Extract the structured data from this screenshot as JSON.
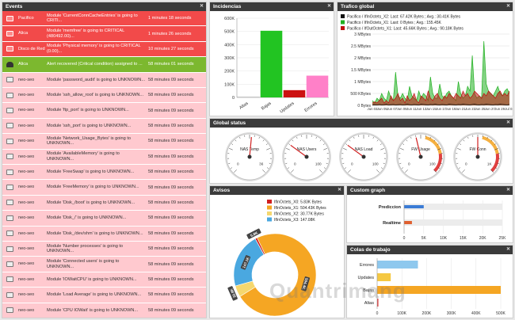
{
  "events": {
    "title": "Events",
    "rows": [
      {
        "kind": "crit",
        "source": "Pacifico",
        "message": "Module 'CurrentConnCacheEntries' is going to CRITI...",
        "time": "1 minutes 18 seconds"
      },
      {
        "kind": "crit",
        "source": "Alica",
        "message": "Module 'memfree' is going to CRITICAL (480492.00)...",
        "time": "1 minutes 26 seconds"
      },
      {
        "kind": "crit",
        "source": "Disco de Red",
        "message": "Module 'Physical memory' is going to CRITICAL (0.00)...",
        "time": "10 minutes 27 seconds"
      },
      {
        "kind": "ok",
        "source": "Alica",
        "message": "Alert recovered (Critical condition) assigned to ...",
        "time": "58 minutes 01 seconds"
      },
      {
        "kind": "norm",
        "source": "neo-seo",
        "message": "Module 'password_audit' is going to UNKNOWN...",
        "time": "58 minutes 09 seconds"
      },
      {
        "kind": "norm",
        "source": "neo-seo",
        "message": "Module 'ssh_allow_root' is going to UNKNOWN...",
        "time": "58 minutes 09 seconds"
      },
      {
        "kind": "norm",
        "source": "neo-seo",
        "message": "Module 'ftp_port' is going to UNKNOWN...",
        "time": "58 minutes 09 seconds"
      },
      {
        "kind": "norm",
        "source": "neo-seo",
        "message": "Module 'ssh_port' is going to UNKNOWN...",
        "time": "58 minutes 09 seconds"
      },
      {
        "kind": "norm",
        "source": "neo-seo",
        "message": "Module 'Network_Usage_Bytes' is going to UNKNOWN...",
        "time": "58 minutes 09 seconds"
      },
      {
        "kind": "norm",
        "source": "neo-seo",
        "message": "Module 'AvailableMemory' is going to UNKNOWN...",
        "time": "58 minutes 09 seconds"
      },
      {
        "kind": "norm",
        "source": "neo-seo",
        "message": "Module 'FreeSwap' is going to UNKNOWN...",
        "time": "58 minutes 09 seconds"
      },
      {
        "kind": "norm",
        "source": "neo-seo",
        "message": "Module 'FreeMemory' is going to UNKNOWN...",
        "time": "58 minutes 09 seconds"
      },
      {
        "kind": "norm",
        "source": "neo-seo",
        "message": "Module 'Disk_/boot' is going to UNKNOWN...",
        "time": "58 minutes 09 seconds"
      },
      {
        "kind": "norm",
        "source": "neo-seo",
        "message": "Module 'Disk_/' is going to UNKNOWN...",
        "time": "58 minutes 09 seconds"
      },
      {
        "kind": "norm",
        "source": "neo-seo",
        "message": "Module 'Disk_/dev/shm' is going to UNKNOWN...",
        "time": "58 minutes 09 seconds"
      },
      {
        "kind": "norm",
        "source": "neo-seo",
        "message": "Module 'Number processes' is going to UNKNOWN...",
        "time": "58 minutes 09 seconds"
      },
      {
        "kind": "norm",
        "source": "neo-seo",
        "message": "Module 'Connected users' is going to UNKNOWN...",
        "time": "58 minutes 09 seconds"
      },
      {
        "kind": "norm",
        "source": "neo-seo",
        "message": "Module 'IOWaitCPU' is going to UNKNOWN...",
        "time": "58 minutes 09 seconds"
      },
      {
        "kind": "norm",
        "source": "neo-seo",
        "message": "Module 'Load Average' is going to UNKNOWN...",
        "time": "58 minutes 09 seconds"
      },
      {
        "kind": "norm",
        "source": "neo-seo",
        "message": "Module 'CPU IOWait' is going to UNKNOWN...",
        "time": "58 minutes 09 seconds"
      }
    ]
  },
  "incidencias": {
    "title": "Incidencias"
  },
  "trafico": {
    "title": "Trafico global"
  },
  "global_status": {
    "title": "Global status",
    "gauges": [
      {
        "label": "NAS Temp",
        "min": "0",
        "max": "36",
        "value": 0.52,
        "ticks": [
          "0",
          "36"
        ]
      },
      {
        "label": "NAS Users",
        "min": "0",
        "max": "100",
        "value": 0.3,
        "ticks": [
          "0",
          "100"
        ]
      },
      {
        "label": "NAS Load",
        "min": "0",
        "max": "100",
        "value": 0.3,
        "ticks": [
          "0",
          "100"
        ]
      },
      {
        "label": "FW Usage",
        "min": "0",
        "max": "100",
        "value": 0.45,
        "ticks": [
          "0",
          "100"
        ]
      },
      {
        "label": "FW Conn",
        "min": "0",
        "max": "1K",
        "value": 0.5,
        "ticks": [
          "0",
          "1K"
        ]
      }
    ]
  },
  "avisos": {
    "title": "Avisos"
  },
  "custom_graph": {
    "title": "Custom graph"
  },
  "colas": {
    "title": "Colas de trabajo"
  },
  "watermark": "Quantrimang",
  "colors": {
    "critical": "#f24a4a",
    "ok": "#7cb82f",
    "normal": "#ffc9cf",
    "header": "#3b3b3b"
  },
  "chart_data": [
    {
      "type": "bar",
      "panel": "incidencias",
      "categories": [
        "Altas",
        "Bajas",
        "Updates",
        "Errores"
      ],
      "values": [
        5000,
        505000,
        55000,
        165000
      ],
      "colors": [
        "#e0e0e0",
        "#22c422",
        "#cc1111",
        "#ff80c8"
      ],
      "ylim": [
        0,
        600000
      ],
      "yticks": [
        "0",
        "100K",
        "200K",
        "300K",
        "400K",
        "500K",
        "600K"
      ]
    },
    {
      "type": "line",
      "panel": "trafico",
      "legend": [
        {
          "name": "Pacifico / IfInOctets_X2: Last: 67.42K Bytes ; Avg.: 30.41K Bytes",
          "color": "#111111"
        },
        {
          "name": "Pacifico / IfInOctets_X1: Last: 0 Bytes ; Avg.: 155.45K",
          "color": "#20b020"
        },
        {
          "name": "Pacifico / IfOutOctets_X1: Last: 45.66K Bytes ; Avg.: 90.18K Bytes",
          "color": "#c01010"
        }
      ],
      "yticks": [
        "0 Bytes",
        "500 KBytes",
        "1 MBytes",
        "1.5 MBytes",
        "2 MBytes",
        "2.5 MBytes",
        "3 MBytes"
      ],
      "xticks": [
        "Jun 03",
        "Jun 05",
        "Jun 07",
        "Jun 09",
        "Jun 11",
        "Jun 13",
        "Jun 15",
        "Jun 17",
        "Jun 19",
        "Jun 21",
        "Jun 23",
        "Jun 25",
        "Jun 27",
        "Jun 29",
        "Jul 01"
      ],
      "ylim": [
        0,
        3
      ],
      "green_series": [
        0.2,
        0.1,
        0.3,
        0.2,
        0.5,
        0.3,
        0.2,
        0.6,
        0.3,
        0.2,
        1.4,
        0.4,
        0.3,
        0.5,
        0.3,
        0.2,
        0.8,
        0.4,
        0.3,
        0.2,
        0.6,
        0.3,
        0.5,
        0.4,
        0.2,
        1.2,
        0.5,
        0.3,
        0.3,
        0.9,
        0.4,
        0.3,
        0.5,
        0.6,
        0.4,
        0.3,
        0.2,
        1.0,
        0.5,
        0.3,
        0.4,
        0.8,
        0.6,
        2.1,
        0.5,
        0.3,
        0.4,
        0.3,
        2.7,
        0.9,
        0.6,
        0.5,
        0.4,
        0.6,
        0.8,
        0.5,
        0.4,
        0.6,
        0.7,
        0.5
      ],
      "red_series": [
        0.1,
        0.15,
        0.1,
        0.2,
        0.3,
        0.1,
        0.2,
        0.1,
        0.4,
        0.2,
        0.3,
        0.5,
        0.2,
        0.3,
        0.1,
        0.4,
        0.2,
        0.3,
        0.5,
        0.2,
        0.1,
        0.4,
        0.3,
        0.2,
        0.6,
        0.3,
        0.2,
        0.4,
        0.5,
        0.3,
        0.2,
        0.4,
        0.3,
        0.5,
        0.4,
        0.3,
        0.5,
        0.4,
        0.3,
        0.6,
        0.4,
        0.5,
        0.3,
        0.4,
        0.6,
        0.5,
        0.4,
        0.3,
        0.5,
        0.4,
        0.6,
        0.5,
        0.4,
        0.3,
        0.5,
        0.6,
        0.4,
        0.5,
        0.4,
        0.6
      ],
      "black_series": [
        0.02,
        0.03,
        0.02,
        0.04,
        0.02,
        0.03,
        0.05,
        0.02,
        0.03,
        0.04,
        0.02,
        0.03,
        0.04,
        0.02,
        0.03,
        0.05,
        0.03,
        0.02,
        0.04,
        0.03,
        0.02,
        0.05,
        0.04,
        0.03,
        0.02,
        0.04,
        0.03,
        0.05,
        0.03,
        0.02,
        0.04,
        0.03,
        0.02,
        0.05,
        0.04,
        0.03,
        0.02,
        0.04,
        0.03,
        0.05,
        0.04,
        0.03,
        0.02,
        0.04,
        0.05,
        0.03,
        0.02,
        0.04,
        0.03,
        0.05,
        0.04,
        0.03,
        0.02,
        0.04,
        0.03,
        0.05,
        0.04,
        0.03,
        0.02,
        0.04
      ]
    },
    {
      "type": "pie",
      "panel": "avisos",
      "slices": [
        {
          "name": "IfInOctets_X0: 5.83K Bytes",
          "value": 5.83,
          "color": "#d02020",
          "label": "5.8K"
        },
        {
          "name": "IfInOctets_X1: 504.43K Bytes",
          "value": 504.43,
          "color": "#f5a623",
          "label": "504.4K"
        },
        {
          "name": "IfInOctets_X2: 30.77K Bytes",
          "value": 30.77,
          "color": "#f5d76e",
          "label": "30.8K"
        },
        {
          "name": "IfInOctets_X3: 147.08K",
          "value": 147.08,
          "color": "#4aa8e0",
          "label": "147.1K"
        }
      ]
    },
    {
      "type": "bar",
      "panel": "custom",
      "orientation": "horizontal",
      "categories": [
        "Prediccion",
        "Realtime"
      ],
      "values": [
        5000,
        2000
      ],
      "ylim": [
        0,
        25000
      ],
      "xticks": [
        "0",
        "5K",
        "10K",
        "15K",
        "20K",
        "25K"
      ]
    },
    {
      "type": "bar",
      "panel": "colas",
      "orientation": "horizontal",
      "categories": [
        "Errores",
        "Updates",
        "Bajas",
        "Altas"
      ],
      "values": [
        165000,
        55000,
        505000,
        5000
      ],
      "colors": [
        "#8ec8ee",
        "#f5c842",
        "#f5a623",
        "#e04040"
      ],
      "ylim": [
        0,
        500000
      ],
      "xticks": [
        "0",
        "100K",
        "200K",
        "300K",
        "400K",
        "500K"
      ]
    }
  ]
}
